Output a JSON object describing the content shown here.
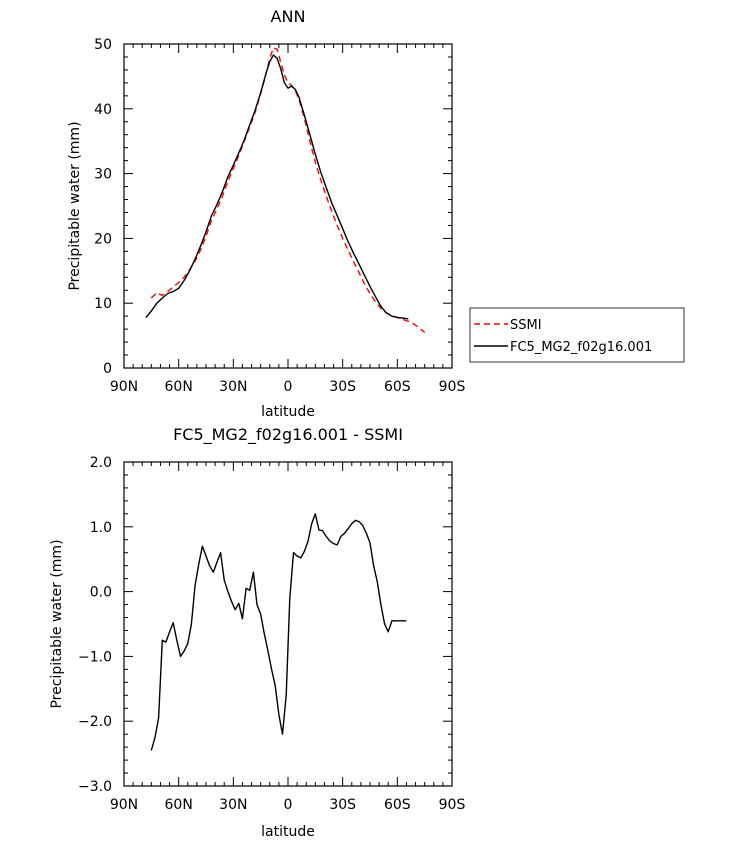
{
  "chart_data": [
    {
      "type": "line",
      "title": "ANN",
      "xlabel": "latitude",
      "ylabel": "Precipitable water (mm)",
      "xlim": [
        -90,
        90
      ],
      "ylim": [
        0,
        50
      ],
      "xticks": [
        -90,
        -60,
        -30,
        0,
        30,
        60,
        90
      ],
      "xtick_labels": [
        "90N",
        "60N",
        "30N",
        "0",
        "30S",
        "60S",
        "90S"
      ],
      "yticks": [
        0,
        10,
        20,
        30,
        40,
        50
      ],
      "ytick_labels": [
        "0",
        "10",
        "20",
        "30",
        "40",
        "50"
      ],
      "legend": "right",
      "series": [
        {
          "name": "SSMI",
          "color": "#ff0000",
          "dash": "dashed",
          "x": [
            -75,
            -72,
            -69,
            -66,
            -63,
            -60,
            -57,
            -54,
            -51,
            -48,
            -45,
            -42,
            -39,
            -36,
            -33,
            -30,
            -27,
            -24,
            -21,
            -18,
            -15,
            -12,
            -10,
            -8,
            -6,
            -4,
            -2,
            0,
            2,
            4,
            6,
            9,
            12,
            15,
            18,
            21,
            24,
            27,
            30,
            33,
            36,
            39,
            42,
            45,
            48,
            51,
            54,
            57,
            60,
            63,
            66,
            69,
            72,
            75
          ],
          "y": [
            10.8,
            11.6,
            11.2,
            11.8,
            12.5,
            13.2,
            14.0,
            15.2,
            16.5,
            18.2,
            20.3,
            22.8,
            24.5,
            26.5,
            28.8,
            30.8,
            32.8,
            35.0,
            37.2,
            39.5,
            42.3,
            45.5,
            47.8,
            49.4,
            49.2,
            47.2,
            45.2,
            44.0,
            43.6,
            42.8,
            41.5,
            38.5,
            35.0,
            31.8,
            29.0,
            26.5,
            24.2,
            22.0,
            20.0,
            18.2,
            16.4,
            14.7,
            13.0,
            11.5,
            10.2,
            9.2,
            8.5,
            8.1,
            7.8,
            7.5,
            7.2,
            6.8,
            6.2,
            5.5
          ]
        },
        {
          "name": "FC5_MG2_f02g16.001",
          "color": "#000000",
          "dash": "solid",
          "x": [
            -78,
            -75,
            -72,
            -69,
            -66,
            -63,
            -60,
            -57,
            -54,
            -51,
            -48,
            -45,
            -42,
            -39,
            -36,
            -33,
            -30,
            -27,
            -24,
            -21,
            -18,
            -15,
            -12,
            -10,
            -8,
            -6,
            -4,
            -2,
            0,
            2,
            4,
            6,
            9,
            12,
            15,
            18,
            21,
            24,
            27,
            30,
            33,
            36,
            39,
            42,
            45,
            48,
            51,
            54,
            57,
            60,
            63,
            66
          ],
          "y": [
            7.8,
            8.8,
            10.0,
            10.8,
            11.5,
            11.8,
            12.3,
            13.5,
            15.0,
            16.8,
            18.8,
            21.0,
            23.5,
            25.2,
            27.2,
            29.5,
            31.3,
            33.2,
            35.2,
            37.5,
            39.8,
            42.5,
            45.5,
            47.3,
            48.3,
            47.8,
            46.2,
            44.0,
            43.2,
            43.5,
            43.0,
            41.8,
            39.0,
            36.0,
            33.0,
            30.2,
            27.8,
            25.5,
            23.5,
            21.5,
            19.5,
            17.7,
            16.0,
            14.3,
            12.6,
            11.0,
            9.5,
            8.5,
            8.0,
            7.8,
            7.7,
            7.6
          ]
        }
      ]
    },
    {
      "type": "line",
      "title": "FC5_MG2_f02g16.001 - SSMI",
      "xlabel": "latitude",
      "ylabel": "Precipitable water (mm)",
      "xlim": [
        -90,
        90
      ],
      "ylim": [
        -3.0,
        2.0
      ],
      "xticks": [
        -90,
        -60,
        -30,
        0,
        30,
        60,
        90
      ],
      "xtick_labels": [
        "90N",
        "60N",
        "30N",
        "0",
        "30S",
        "60S",
        "90S"
      ],
      "yticks": [
        -3.0,
        -2.0,
        -1.0,
        0.0,
        1.0,
        2.0
      ],
      "ytick_labels": [
        "−3.0",
        "−2.0",
        "−1.0",
        "0.0",
        "1.0",
        "2.0"
      ],
      "series": [
        {
          "color": "#000000",
          "dash": "solid",
          "x": [
            -75,
            -73,
            -71,
            -69,
            -67,
            -65,
            -63,
            -61,
            -59,
            -57,
            -55,
            -53,
            -51,
            -49,
            -47,
            -45,
            -43,
            -41,
            -39,
            -37,
            -35,
            -33,
            -31,
            -29,
            -27,
            -25,
            -23,
            -21,
            -19,
            -17,
            -15,
            -13,
            -11,
            -9,
            -7,
            -5,
            -3,
            -1,
            1,
            3,
            5,
            7,
            9,
            11,
            13,
            15,
            17,
            19,
            21,
            23,
            25,
            27,
            29,
            31,
            33,
            35,
            37,
            39,
            41,
            43,
            45,
            47,
            49,
            51,
            53,
            55,
            57,
            59,
            61,
            63,
            65
          ],
          "y": [
            -2.45,
            -2.25,
            -1.95,
            -0.75,
            -0.78,
            -0.62,
            -0.48,
            -0.75,
            -1.0,
            -0.92,
            -0.8,
            -0.5,
            0.1,
            0.42,
            0.7,
            0.55,
            0.4,
            0.3,
            0.45,
            0.6,
            0.18,
            0.0,
            -0.15,
            -0.28,
            -0.18,
            -0.42,
            0.05,
            0.02,
            0.3,
            -0.2,
            -0.35,
            -0.65,
            -0.92,
            -1.2,
            -1.45,
            -1.9,
            -2.2,
            -1.6,
            -0.1,
            0.6,
            0.55,
            0.52,
            0.62,
            0.78,
            1.05,
            1.2,
            0.95,
            0.94,
            0.85,
            0.78,
            0.74,
            0.72,
            0.85,
            0.9,
            0.97,
            1.05,
            1.1,
            1.08,
            1.02,
            0.9,
            0.75,
            0.4,
            0.15,
            -0.2,
            -0.5,
            -0.62,
            -0.45,
            -0.45,
            -0.45,
            -0.45,
            -0.45
          ]
        }
      ]
    }
  ]
}
